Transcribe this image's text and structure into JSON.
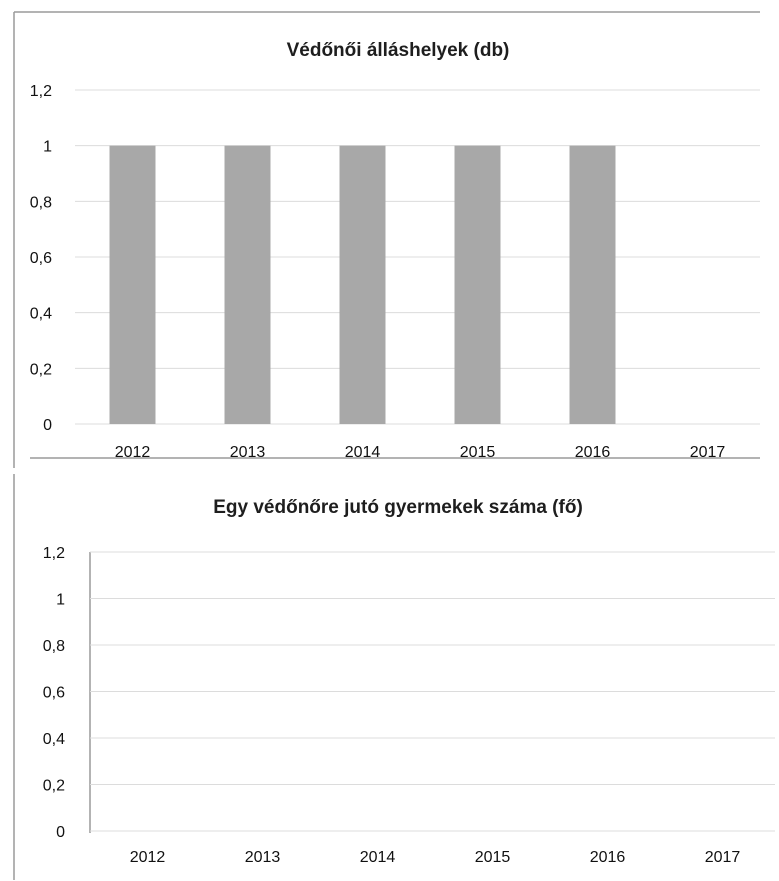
{
  "chart_data": [
    {
      "type": "bar",
      "title": "Védőnői álláshelyek (db)",
      "categories": [
        "2012",
        "2013",
        "2014",
        "2015",
        "2016",
        "2017"
      ],
      "values": [
        1,
        1,
        1,
        1,
        1,
        null
      ],
      "ylim": [
        0,
        1.2
      ],
      "yticks": [
        "0",
        "0,2",
        "0,4",
        "0,6",
        "0,8",
        "1",
        "1,2"
      ],
      "grid": true,
      "legend": "none",
      "bar_color": "#a8a8a8"
    },
    {
      "type": "bar",
      "title": "Egy védőnőre jutó gyermekek száma (fő)",
      "categories": [
        "2012",
        "2013",
        "2014",
        "2015",
        "2016",
        "2017"
      ],
      "values": [
        null,
        null,
        null,
        null,
        null,
        null
      ],
      "ylim": [
        0,
        1.2
      ],
      "yticks": [
        "0",
        "0,2",
        "0,4",
        "0,6",
        "0,8",
        "1",
        "1,2"
      ],
      "grid": true,
      "legend": "none"
    }
  ]
}
